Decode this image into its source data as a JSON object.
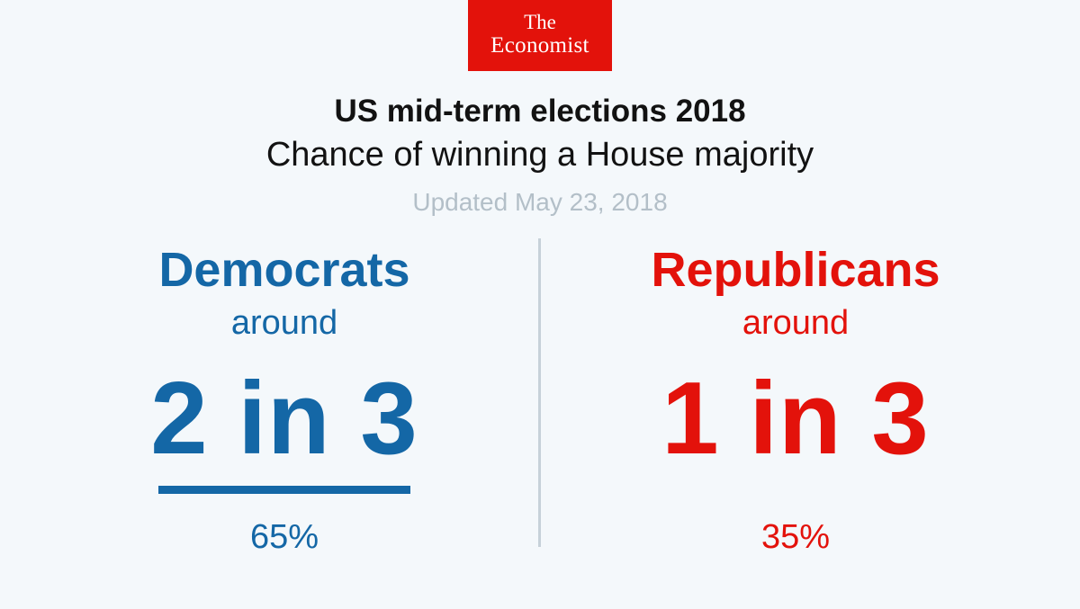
{
  "brand": {
    "line1": "The",
    "line2": "Economist",
    "color": "#e3120b"
  },
  "header": {
    "title": "US mid-term elections 2018",
    "subtitle": "Chance of winning a House majority",
    "updated": "Updated May 23, 2018"
  },
  "democrats": {
    "party": "Democrats",
    "qualifier": "around",
    "odds": "2 in 3",
    "percent": "65%",
    "probability": 0.65,
    "color": "#1467a6",
    "favoured": true
  },
  "republicans": {
    "party": "Republicans",
    "qualifier": "around",
    "odds": "1 in 3",
    "percent": "35%",
    "probability": 0.35,
    "color": "#e3120b",
    "favoured": false
  }
}
